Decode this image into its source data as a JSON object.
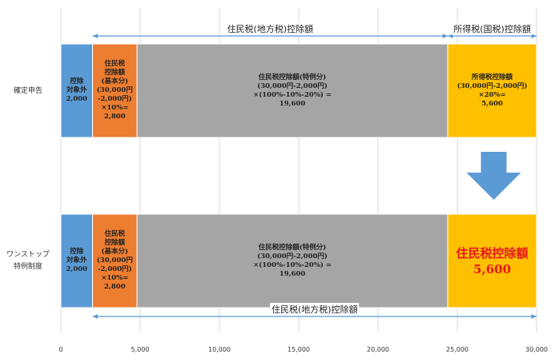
{
  "chart_data": {
    "type": "bar",
    "orientation": "horizontal",
    "stacked": true,
    "xlim": [
      0,
      30000
    ],
    "x_ticks": [
      "0",
      "5,000",
      "10,000",
      "15,000",
      "20,000",
      "25,000",
      "30,000"
    ],
    "x_tick_values": [
      0,
      5000,
      10000,
      15000,
      20000,
      25000,
      30000
    ],
    "grid": "vertical",
    "categories": [
      "確定申告",
      "ワンストップ\n特例制度"
    ],
    "rows": [
      {
        "category": "確定申告",
        "segments": [
          {
            "value": 2000,
            "color": "#5b9bd5",
            "label": "控除\n対象外\n2,000"
          },
          {
            "value": 2800,
            "color": "#ed7d31",
            "label": "住民税\n控除額\n(基本分)\n(30,000円\n-2,000円)\n×10%=\n2,800"
          },
          {
            "value": 19600,
            "color": "#a5a5a5",
            "label": "住民税控除額(特例分)\n(30,000円-2,000円)\n×(100%-10%-20%) =\n19,600"
          },
          {
            "value": 5600,
            "color": "#ffc000",
            "label": "所得税控除額\n(30,000円-2,000円)\n×20%=\n5,600"
          }
        ]
      },
      {
        "category": "ワンストップ\n特例制度",
        "segments": [
          {
            "value": 2000,
            "color": "#5b9bd5",
            "label": "控除\n対象外\n2,000"
          },
          {
            "value": 2800,
            "color": "#ed7d31",
            "label": "住民税\n控除額\n(基本分)\n(30,000円\n-2,000円)\n×10%=\n2,800"
          },
          {
            "value": 19600,
            "color": "#a5a5a5",
            "label": "住民税控除額(特例分)\n(30,000円-2,000円)\n×(100%-10%-20%) =\n19,600"
          },
          {
            "value": 5600,
            "color": "#ffc000",
            "label": "住民税控除額\n5,600",
            "highlight": true
          }
        ]
      }
    ],
    "annotations": {
      "top_resident_span": {
        "text": "住民税(地方税)控除額",
        "from": 2000,
        "to": 24400
      },
      "top_income_span": {
        "text": "所得税(国税)控除額",
        "from": 24400,
        "to": 30000
      },
      "bottom_resident_span": {
        "text": "住民税(地方税)控除額",
        "from": 2000,
        "to": 30000
      },
      "transition_arrow": {
        "color": "#5b9bd5",
        "at": 27300
      }
    }
  }
}
